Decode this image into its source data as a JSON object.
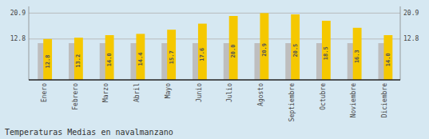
{
  "chart_data": {
    "type": "bar",
    "title": "Temperaturas Medias en navalmanzano",
    "categories": [
      "Enero",
      "Febrero",
      "Marzo",
      "Abril",
      "Mayo",
      "Junio",
      "Julio",
      "Agosto",
      "Septiembre",
      "Octubre",
      "Noviembre",
      "Diciembre"
    ],
    "series": [
      {
        "color": "#BEBEBE",
        "values": [
          11.5,
          11.5,
          11.5,
          11.5,
          11.5,
          11.5,
          11.5,
          11.5,
          11.5,
          11.5,
          11.5,
          11.5
        ]
      },
      {
        "color": "#F5C800",
        "values": [
          12.8,
          13.2,
          14.0,
          14.4,
          15.7,
          17.6,
          20.0,
          20.9,
          20.5,
          18.5,
          16.3,
          14.0
        ],
        "data_labels": true,
        "value_labels": [
          "12.8",
          "13.2",
          "14.0",
          "14.4",
          "15.7",
          "17.6",
          "20.0",
          "20.9",
          "20.5",
          "18.5",
          "16.3",
          "14.0"
        ]
      }
    ],
    "ylim": [
      0.0,
      23.0
    ],
    "yticks": [
      12.8,
      20.9
    ],
    "y2lim": [
      0.0,
      23.0
    ],
    "y2ticks": [
      12.8,
      20.9
    ],
    "grid": true
  }
}
